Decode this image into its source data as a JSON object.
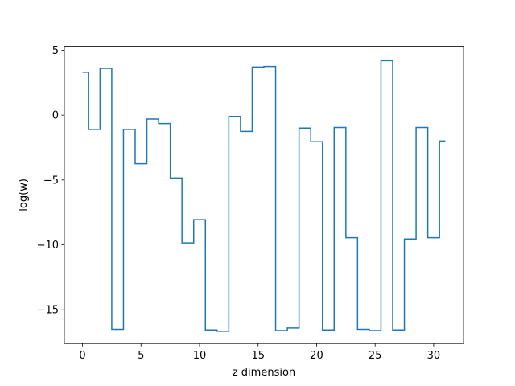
{
  "chart_data": {
    "type": "line",
    "drawstyle": "steps-mid",
    "title": "",
    "xlabel": "z dimension",
    "ylabel": "log(w)",
    "xlim": [
      -1.55,
      32.55
    ],
    "ylim": [
      -17.6,
      5.3
    ],
    "xticks": [
      0,
      5,
      10,
      15,
      20,
      25,
      30
    ],
    "xtick_labels": [
      "0",
      "5",
      "10",
      "15",
      "20",
      "25",
      "30"
    ],
    "yticks": [
      5,
      0,
      -5,
      -10,
      -15
    ],
    "ytick_labels": [
      "5",
      "0",
      "−5",
      "−10",
      "−15"
    ],
    "grid": false,
    "legend": "none",
    "series": [
      {
        "color": "#1f77b4",
        "x": [
          0,
          1,
          2,
          3,
          4,
          5,
          6,
          7,
          8,
          9,
          10,
          11,
          12,
          13,
          14,
          15,
          16,
          17,
          18,
          19,
          20,
          21,
          22,
          23,
          24,
          25,
          26,
          27,
          28,
          29,
          30,
          31
        ],
        "y": [
          3.3,
          -1.1,
          3.6,
          -16.5,
          -1.1,
          -3.75,
          -0.3,
          -0.65,
          -4.85,
          -9.85,
          -8.05,
          -16.55,
          -16.65,
          -0.1,
          -1.25,
          3.7,
          3.75,
          -16.6,
          -16.4,
          -1.0,
          -2.05,
          -16.55,
          -0.95,
          -9.45,
          -16.5,
          -16.6,
          4.2,
          -16.55,
          -9.55,
          -0.95,
          -9.45,
          -2.0
        ]
      }
    ]
  }
}
